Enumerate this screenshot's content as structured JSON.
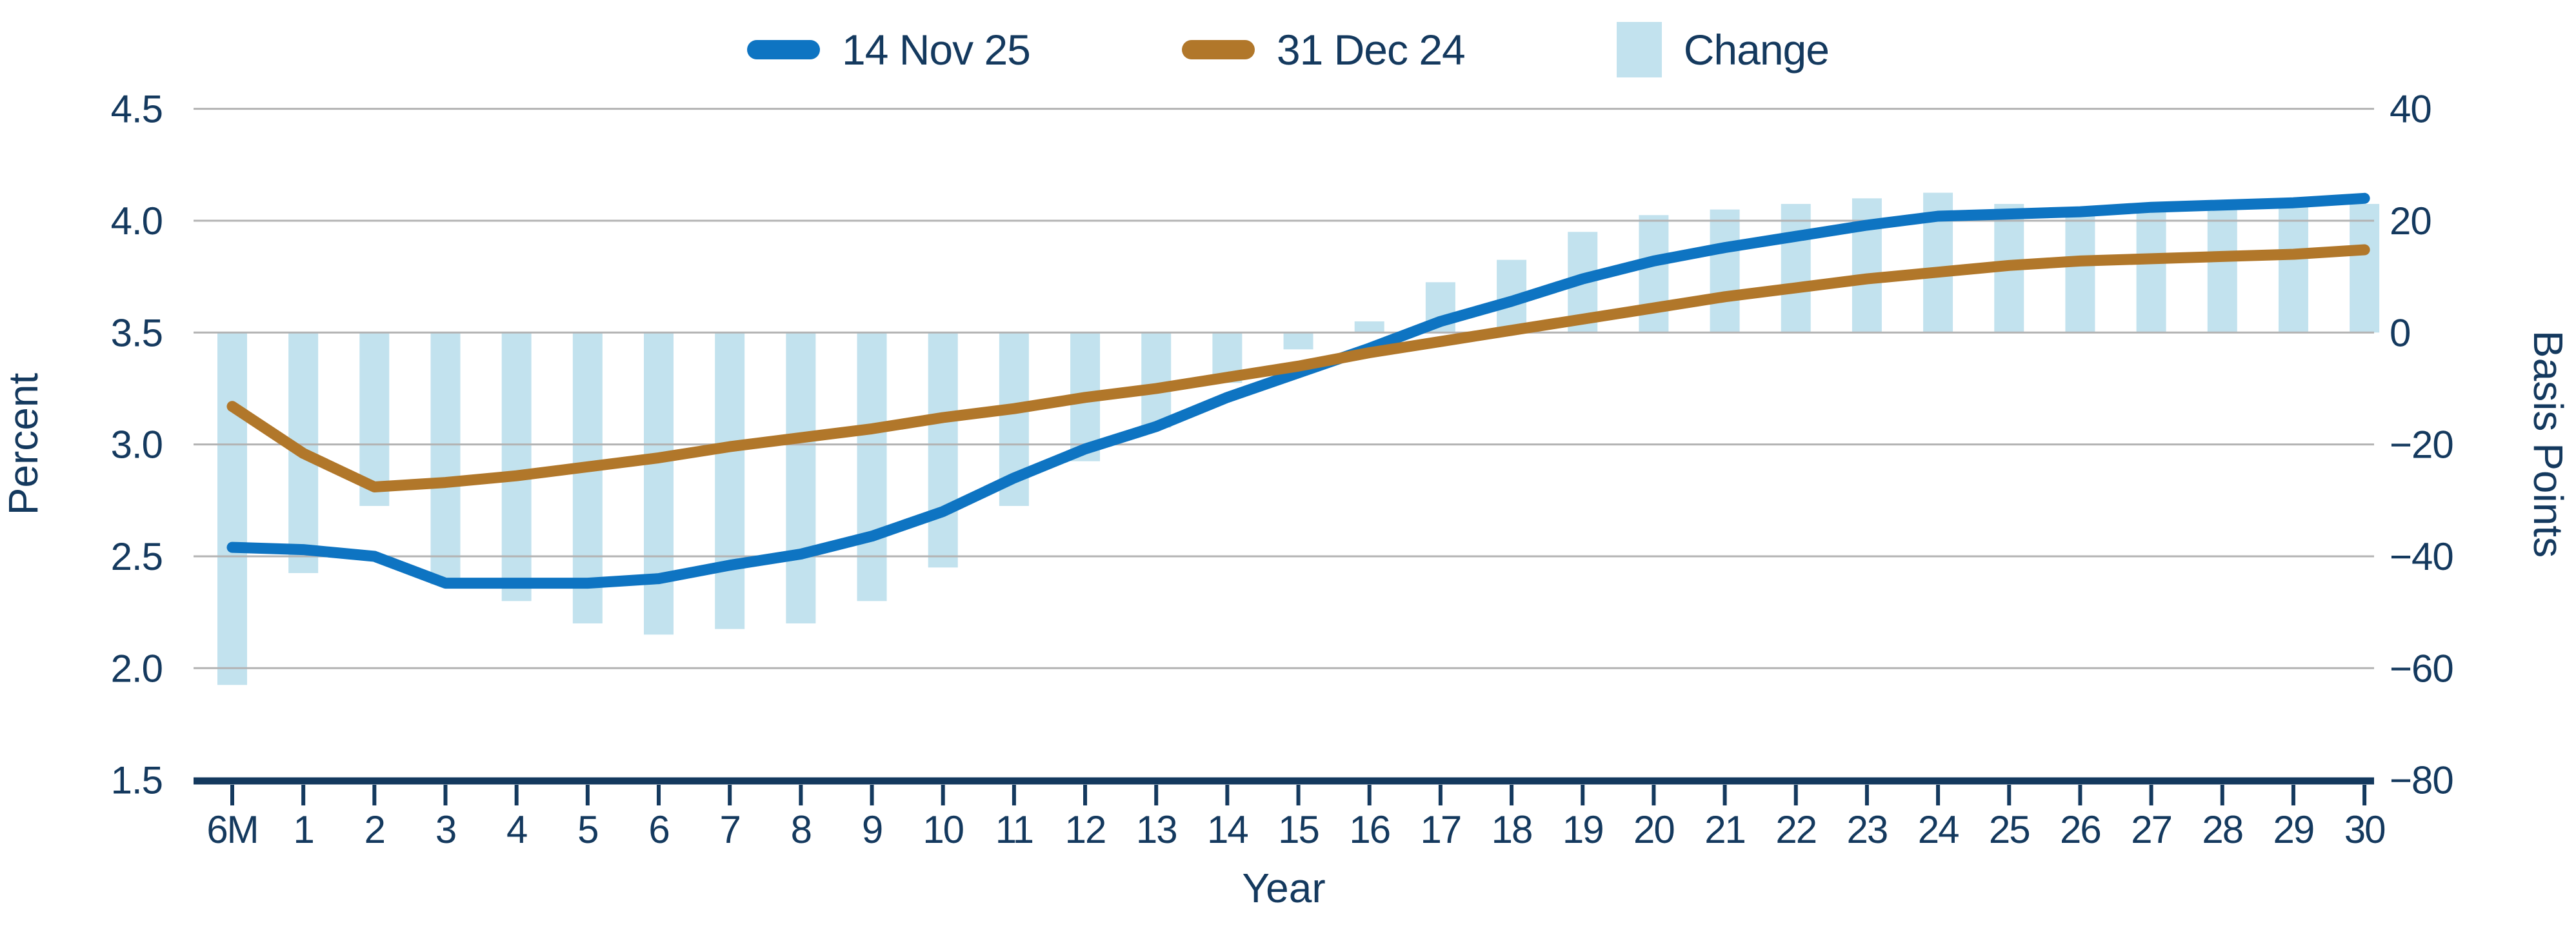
{
  "chart_data": {
    "type": "line+bar",
    "categories": [
      "6M",
      "1",
      "2",
      "3",
      "4",
      "5",
      "6",
      "7",
      "8",
      "9",
      "10",
      "11",
      "12",
      "13",
      "14",
      "15",
      "16",
      "17",
      "18",
      "19",
      "20",
      "21",
      "22",
      "23",
      "24",
      "25",
      "26",
      "27",
      "28",
      "29",
      "30"
    ],
    "series": [
      {
        "name": "14 Nov 25",
        "axis": "left",
        "unit": "percent",
        "color": "#0e74c2",
        "values": [
          2.54,
          2.53,
          2.5,
          2.38,
          2.38,
          2.38,
          2.4,
          2.46,
          2.51,
          2.59,
          2.7,
          2.85,
          2.98,
          3.08,
          3.21,
          3.32,
          3.43,
          3.55,
          3.64,
          3.74,
          3.82,
          3.88,
          3.93,
          3.98,
          4.02,
          4.03,
          4.04,
          4.06,
          4.07,
          4.08,
          4.1
        ]
      },
      {
        "name": "31 Dec 24",
        "axis": "left",
        "unit": "percent",
        "color": "#b1772a",
        "values": [
          3.17,
          2.96,
          2.81,
          2.83,
          2.86,
          2.9,
          2.94,
          2.99,
          3.03,
          3.07,
          3.12,
          3.16,
          3.21,
          3.25,
          3.3,
          3.35,
          3.41,
          3.46,
          3.51,
          3.56,
          3.61,
          3.66,
          3.7,
          3.74,
          3.77,
          3.8,
          3.82,
          3.83,
          3.84,
          3.85,
          3.87
        ]
      }
    ],
    "bars": {
      "name": "Change",
      "axis": "right",
      "unit": "basis points",
      "color": "#c2e2ee",
      "values_bp": [
        -63,
        -43,
        -31,
        -45,
        -48,
        -52,
        -54,
        -53,
        -52,
        -48,
        -42,
        -31,
        -23,
        -17,
        -9,
        -3,
        2,
        9,
        13,
        18,
        21,
        22,
        23,
        24,
        25,
        23,
        22,
        23,
        23,
        23,
        23
      ]
    },
    "left_axis": {
      "title": "Percent",
      "ticks": [
        "4.5",
        "4.0",
        "3.5",
        "3.0",
        "2.5",
        "2.0",
        "1.5"
      ],
      "tick_values": [
        4.5,
        4.0,
        3.5,
        3.0,
        2.5,
        2.0,
        1.5
      ],
      "min": 1.5,
      "max": 4.5
    },
    "right_axis": {
      "title": "Basis Points",
      "ticks": [
        "40",
        "20",
        "0",
        "−20",
        "−40",
        "−60",
        "−80"
      ],
      "tick_values": [
        40,
        20,
        0,
        -20,
        -40,
        -60,
        -80
      ],
      "min": -80,
      "max": 40
    },
    "x_axis": {
      "title": "Year"
    },
    "layout": {
      "grid": "horizontal",
      "legend_position": "top-center"
    },
    "colors": {
      "text": "#14395e",
      "gridline": "#b3b3b3",
      "axis_line": "#14395e"
    }
  }
}
